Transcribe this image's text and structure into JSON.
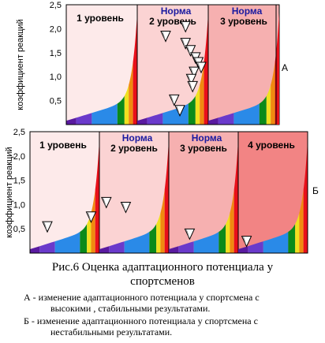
{
  "chart_data": [
    {
      "type": "scatter",
      "panel_label": "А",
      "ylabel": "коэффициент реакций",
      "ylim": [
        0,
        2.5
      ],
      "yticks": [
        "2,5",
        "2,0",
        "1,5",
        "1,0",
        "0,5"
      ],
      "yticks_values": [
        2.5,
        2.0,
        1.5,
        1.0,
        0.5
      ],
      "zones": [
        {
          "title": "1 уровень",
          "norma": "",
          "color": "#fdeaea"
        },
        {
          "title": "2 уровень",
          "norma": "Норма",
          "color": "#fbd3d3"
        },
        {
          "title": "3 уровень",
          "norma": "Норма",
          "color": "#f6b0b0"
        }
      ],
      "points": [
        {
          "zone": 2,
          "x": 0.4,
          "y": 1.85
        },
        {
          "zone": 2,
          "x": 0.68,
          "y": 2.05
        },
        {
          "zone": 2,
          "x": 0.68,
          "y": 1.7
        },
        {
          "zone": 2,
          "x": 0.75,
          "y": 1.55
        },
        {
          "zone": 2,
          "x": 0.82,
          "y": 1.4
        },
        {
          "zone": 2,
          "x": 0.86,
          "y": 1.3
        },
        {
          "zone": 2,
          "x": 0.9,
          "y": 1.2
        },
        {
          "zone": 2,
          "x": 0.8,
          "y": 1.1
        },
        {
          "zone": 2,
          "x": 0.76,
          "y": 0.95
        },
        {
          "zone": 2,
          "x": 0.78,
          "y": 0.8
        },
        {
          "zone": 2,
          "x": 0.52,
          "y": 0.52
        },
        {
          "zone": 2,
          "x": 0.6,
          "y": 0.3
        }
      ]
    },
    {
      "type": "scatter",
      "panel_label": "Б",
      "ylabel": "коэффициент реакций",
      "ylim": [
        0,
        2.5
      ],
      "yticks": [
        "2,5",
        "2,0",
        "1,5",
        "1,0",
        "0,5"
      ],
      "yticks_values": [
        2.5,
        2.0,
        1.5,
        1.0,
        0.5
      ],
      "zones": [
        {
          "title": "1 уровень",
          "norma": "",
          "color": "#fdeaea"
        },
        {
          "title": "2 уровень",
          "norma": "Норма",
          "color": "#fbd3d3"
        },
        {
          "title": "3 уровень",
          "norma": "Норма",
          "color": "#f6b0b0"
        },
        {
          "title": "4 уровень",
          "norma": "",
          "color": "#f28484"
        }
      ],
      "points": [
        {
          "zone": 1,
          "x": 0.25,
          "y": 0.55
        },
        {
          "zone": 1,
          "x": 0.88,
          "y": 0.75
        },
        {
          "zone": 2,
          "x": 0.1,
          "y": 1.05
        },
        {
          "zone": 2,
          "x": 0.38,
          "y": 0.95
        },
        {
          "zone": 3,
          "x": 0.3,
          "y": 0.4
        },
        {
          "zone": 4,
          "x": 0.12,
          "y": 0.25
        }
      ]
    }
  ],
  "caption": {
    "line1": "Рис.6 Оценка адаптационного потенциала у",
    "line2": "спортсменов"
  },
  "notes": {
    "a_line1": "А - изменение адаптационного потенциала у спортсмена с",
    "a_line2": "высокими , стабильными результатами.",
    "b_line1": "Б - изменение адаптационного потенциала у спортсмена с",
    "b_line2": "нестабильными результатами."
  },
  "colors": {
    "norma_text": "#1a1aa0",
    "bands": [
      "#5a1aa0",
      "#6a3acb",
      "#2a8ae8",
      "#0a8a1a",
      "#f0e020",
      "#f08a10",
      "#e8101a"
    ]
  }
}
